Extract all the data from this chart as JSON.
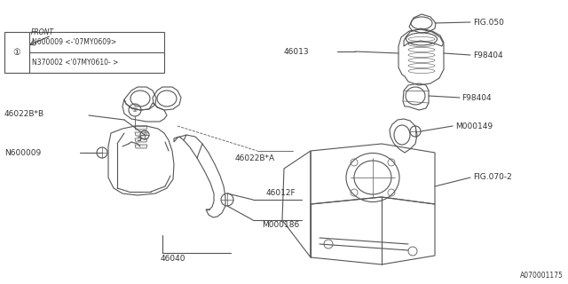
{
  "bg_color": "#ffffff",
  "line_color": "#555555",
  "text_color": "#333333",
  "diagram_code": "A070001175",
  "legend_rows": [
    "N600009 <-’07MY0609>",
    "N370002 <’07MY0610- >"
  ],
  "front_label": "FRONT"
}
